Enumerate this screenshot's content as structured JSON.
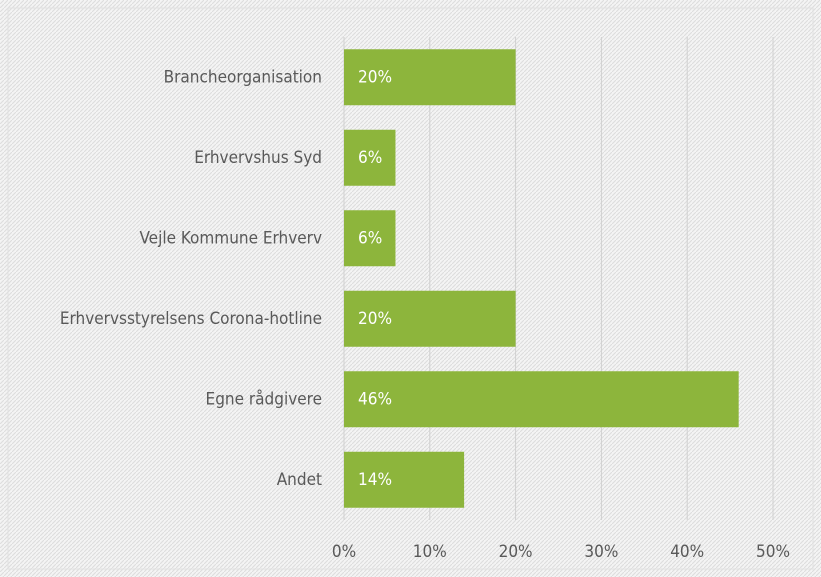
{
  "chart_data": {
    "type": "bar",
    "orientation": "horizontal",
    "categories": [
      "Brancheorganisation",
      "Erhvervshus Syd",
      "Vejle Kommune Erhverv",
      "Erhvervsstyrelsens Corona-hotline",
      "Egne rådgivere",
      "Andet"
    ],
    "values": [
      20,
      6,
      6,
      20,
      46,
      14
    ],
    "value_labels": [
      "20%",
      "6%",
      "6%",
      "20%",
      "46%",
      "14%"
    ],
    "color": "#8db53c",
    "xlim": [
      0,
      50
    ],
    "xticks": [
      {
        "value": 0,
        "label": "0%"
      },
      {
        "value": 10,
        "label": "10%"
      },
      {
        "value": 20,
        "label": "20%"
      },
      {
        "value": 30,
        "label": "30%"
      },
      {
        "value": 40,
        "label": "40%"
      },
      {
        "value": 50,
        "label": "50%"
      }
    ],
    "grid": true
  }
}
